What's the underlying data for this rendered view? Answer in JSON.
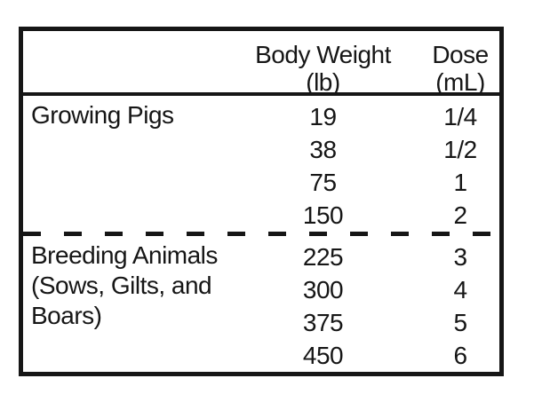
{
  "header": {
    "body_weight_title": "Body Weight",
    "body_weight_unit": "(lb)",
    "dose_title": "Dose",
    "dose_unit": "(mL)"
  },
  "sections": [
    {
      "label_lines": [
        "Growing Pigs"
      ],
      "rows": [
        {
          "body_weight": "19",
          "dose": "1/4"
        },
        {
          "body_weight": "38",
          "dose": "1/2"
        },
        {
          "body_weight": "75",
          "dose": "1"
        },
        {
          "body_weight": "150",
          "dose": "2"
        }
      ]
    },
    {
      "label_lines": [
        "Breeding Animals",
        "(Sows, Gilts, and",
        "Boars)"
      ],
      "rows": [
        {
          "body_weight": "225",
          "dose": "3"
        },
        {
          "body_weight": "300",
          "dose": "4"
        },
        {
          "body_weight": "375",
          "dose": "5"
        },
        {
          "body_weight": "450",
          "dose": "6"
        }
      ]
    }
  ],
  "colors": {
    "border": "#161616",
    "text": "#161616",
    "background": "#ffffff"
  }
}
